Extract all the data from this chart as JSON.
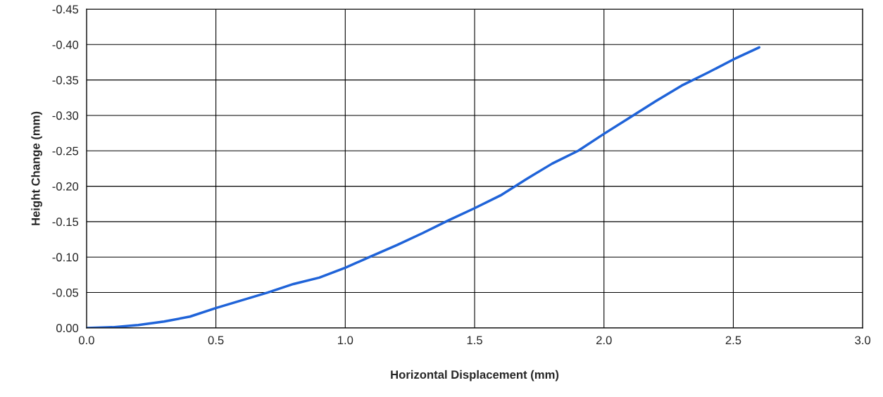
{
  "chart_data": {
    "type": "line",
    "xlabel": "Horizontal Displacement (mm)",
    "ylabel": "Height Change (mm)",
    "x": [
      0,
      0.1,
      0.2,
      0.3,
      0.4,
      0.5,
      0.6,
      0.7,
      0.8,
      0.9,
      1.0,
      1.1,
      1.2,
      1.3,
      1.4,
      1.5,
      1.6,
      1.7,
      1.8,
      1.9,
      2.0,
      2.1,
      2.2,
      2.3,
      2.4,
      2.5,
      2.6
    ],
    "series": [
      {
        "color": "#1f63d8",
        "values": [
          0,
          -0.001,
          -0.004,
          -0.009,
          -0.016,
          -0.028,
          -0.039,
          -0.05,
          -0.062,
          -0.071,
          -0.085,
          -0.101,
          -0.117,
          -0.134,
          -0.152,
          -0.169,
          -0.187,
          -0.21,
          -0.232,
          -0.25,
          -0.274,
          -0.297,
          -0.32,
          -0.342,
          -0.36,
          -0.379,
          -0.396
        ]
      }
    ],
    "xlim": [
      0,
      3.0
    ],
    "xticks": [
      {
        "value": 0,
        "label": "0.0"
      },
      {
        "value": 0.5,
        "label": "0.5"
      },
      {
        "value": 1.0,
        "label": "1.0"
      },
      {
        "value": 1.5,
        "label": "1.5"
      },
      {
        "value": 2.0,
        "label": "2.0"
      },
      {
        "value": 2.5,
        "label": "2.5"
      },
      {
        "value": 3.0,
        "label": "3.0"
      }
    ],
    "ylim": [
      0,
      -0.45
    ],
    "yticks": [
      {
        "value": 0,
        "label": "0.00"
      },
      {
        "value": -0.05,
        "label": "-0.05"
      },
      {
        "value": -0.1,
        "label": "-0.10"
      },
      {
        "value": -0.15,
        "label": "-0.15"
      },
      {
        "value": -0.2,
        "label": "-0.20"
      },
      {
        "value": -0.25,
        "label": "-0.25"
      },
      {
        "value": -0.3,
        "label": "-0.30"
      },
      {
        "value": -0.35,
        "label": "-0.35"
      },
      {
        "value": -0.4,
        "label": "-0.40"
      },
      {
        "value": -0.45,
        "label": "-0.45"
      }
    ],
    "grid": true,
    "marker": "none",
    "line_style": "solid"
  }
}
